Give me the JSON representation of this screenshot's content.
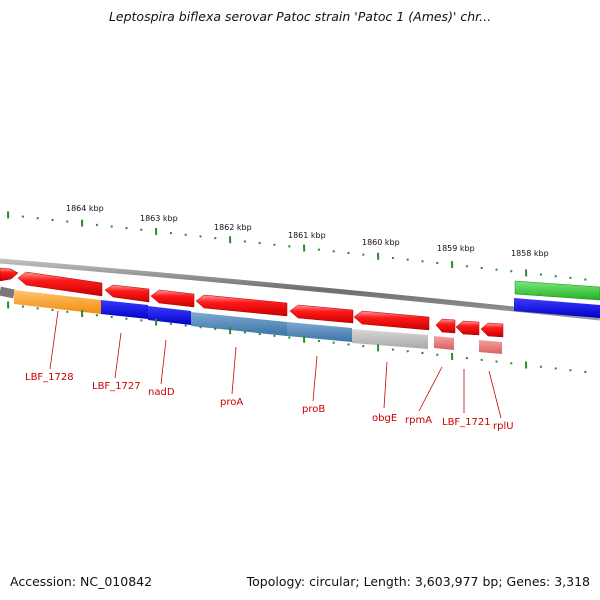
{
  "title": "Leptospira biflexa serovar Patoc strain 'Patoc 1 (Ames)' chr...",
  "footer": {
    "accession": "Accession: NC_010842",
    "summary": "Topology: circular; Length: 3,603,977 bp; Genes: 3,318"
  },
  "ruler": {
    "labels": [
      "1864 kbp",
      "1863 kbp",
      "1862 kbp",
      "1861 kbp",
      "1860 kbp",
      "1859 kbp",
      "1858 kbp"
    ],
    "tick_color": "#2a8a2a"
  },
  "genes": {
    "labels": [
      "LBF_1728",
      "LBF_1727",
      "nadD",
      "proA",
      "proB",
      "obgE",
      "rpmA",
      "LBF_1721",
      "rplU"
    ],
    "label_color": "#cc0000",
    "feature_color": "#ff0000"
  },
  "colors": {
    "backbone": "#808080",
    "cog_orange": "#ffa020",
    "cog_blue": "#0000e6",
    "cog_steel": "#4682b4",
    "cog_gray": "#b0b0b0",
    "cog_pink": "#e57373",
    "cog_green": "#2ecc2e"
  }
}
